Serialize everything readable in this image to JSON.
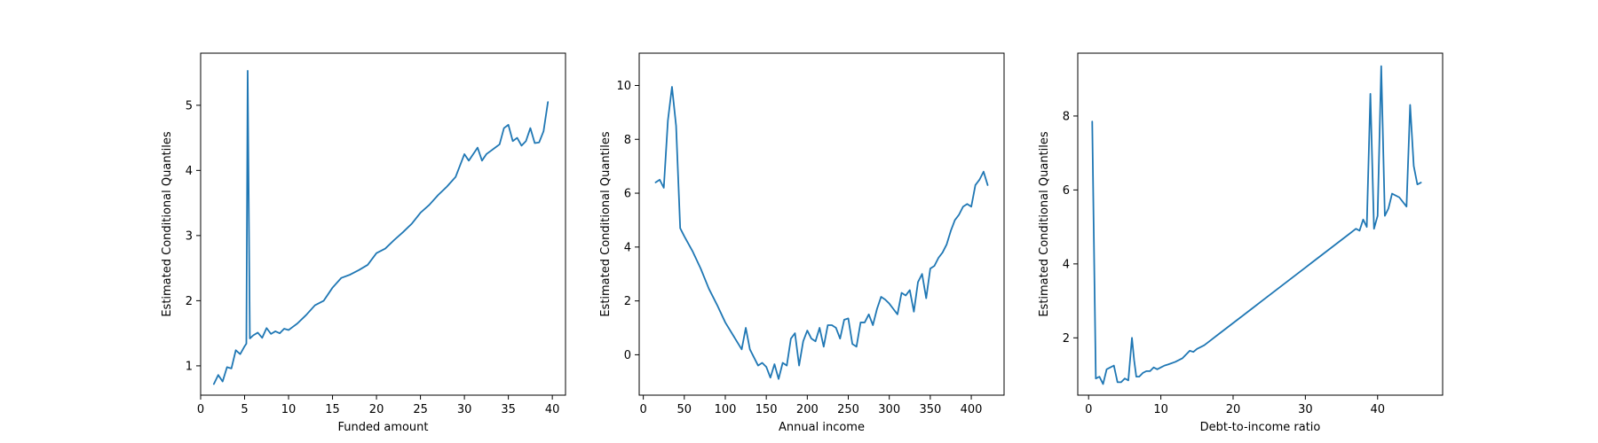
{
  "chart_data": [
    {
      "type": "line",
      "xlabel": "Funded amount",
      "ylabel": "Estimated Conditional Quantiles",
      "xlim": [
        0,
        41.5
      ],
      "ylim": [
        0.55,
        5.8
      ],
      "xticks": [
        0,
        5,
        10,
        15,
        20,
        25,
        30,
        35,
        40
      ],
      "yticks": [
        1,
        2,
        3,
        4,
        5
      ],
      "color": "#1f77b4",
      "x": [
        1.5,
        2.0,
        2.5,
        3.0,
        3.5,
        4.0,
        4.5,
        5.0,
        5.2,
        5.35,
        5.6,
        6.0,
        6.5,
        7.0,
        7.5,
        8.0,
        8.5,
        9.0,
        9.5,
        10.0,
        10.5,
        11,
        12,
        13,
        14,
        15,
        16,
        17,
        18,
        19,
        20,
        21,
        22,
        23,
        24,
        25,
        26,
        27,
        28,
        29,
        30,
        30.5,
        31,
        31.5,
        32,
        32.5,
        33,
        33.5,
        34,
        34.5,
        35,
        35.5,
        36,
        36.5,
        37,
        37.5,
        38,
        38.5,
        39,
        39.5
      ],
      "y": [
        0.72,
        0.86,
        0.76,
        0.98,
        0.96,
        1.24,
        1.18,
        1.3,
        1.34,
        5.53,
        1.42,
        1.47,
        1.51,
        1.43,
        1.58,
        1.49,
        1.53,
        1.5,
        1.57,
        1.55,
        1.6,
        1.65,
        1.78,
        1.93,
        2.0,
        2.2,
        2.35,
        2.4,
        2.47,
        2.55,
        2.73,
        2.8,
        2.93,
        3.05,
        3.18,
        3.35,
        3.47,
        3.62,
        3.75,
        3.9,
        4.25,
        4.15,
        4.25,
        4.35,
        4.15,
        4.25,
        4.3,
        4.35,
        4.4,
        4.65,
        4.7,
        4.45,
        4.5,
        4.38,
        4.45,
        4.65,
        4.42,
        4.43,
        4.6,
        5.05
      ]
    },
    {
      "type": "line",
      "xlabel": "Annual income",
      "ylabel": "Estimated Conditional Quantiles",
      "xlim": [
        -5,
        440
      ],
      "ylim": [
        -1.5,
        11.2
      ],
      "xticks": [
        0,
        50,
        100,
        150,
        200,
        250,
        300,
        350,
        400
      ],
      "yticks": [
        0,
        2,
        4,
        6,
        8,
        10
      ],
      "color": "#1f77b4",
      "x": [
        15,
        20,
        25,
        30,
        35,
        40,
        45,
        50,
        60,
        70,
        80,
        90,
        100,
        110,
        120,
        125,
        130,
        140,
        145,
        150,
        155,
        160,
        165,
        170,
        175,
        180,
        185,
        190,
        195,
        200,
        205,
        210,
        215,
        220,
        225,
        230,
        235,
        240,
        245,
        250,
        255,
        260,
        265,
        270,
        275,
        280,
        285,
        290,
        295,
        300,
        305,
        310,
        315,
        320,
        325,
        330,
        335,
        340,
        345,
        350,
        355,
        360,
        365,
        370,
        375,
        380,
        385,
        390,
        395,
        400,
        405,
        410,
        415,
        420
      ],
      "y": [
        6.4,
        6.5,
        6.2,
        8.7,
        9.95,
        8.5,
        4.7,
        4.4,
        3.85,
        3.2,
        2.45,
        1.85,
        1.2,
        0.7,
        0.2,
        1.0,
        0.2,
        -0.4,
        -0.3,
        -0.45,
        -0.85,
        -0.35,
        -0.9,
        -0.3,
        -0.4,
        0.6,
        0.8,
        -0.4,
        0.5,
        0.9,
        0.6,
        0.5,
        1.0,
        0.3,
        1.1,
        1.1,
        1.0,
        0.6,
        1.3,
        1.35,
        0.4,
        0.3,
        1.2,
        1.2,
        1.5,
        1.1,
        1.7,
        2.15,
        2.05,
        1.9,
        1.7,
        1.5,
        2.3,
        2.2,
        2.4,
        1.6,
        2.7,
        3.0,
        2.1,
        3.2,
        3.3,
        3.6,
        3.8,
        4.1,
        4.6,
        5.0,
        5.2,
        5.5,
        5.6,
        5.5,
        6.3,
        6.5,
        6.8,
        6.3
      ]
    },
    {
      "type": "line",
      "xlabel": "Debt-to-income ratio",
      "ylabel": "Estimated Conditional Quantiles",
      "xlim": [
        -1.5,
        49
      ],
      "ylim": [
        0.45,
        9.7
      ],
      "xticks": [
        0,
        10,
        20,
        30,
        40
      ],
      "yticks": [
        2,
        4,
        6,
        8
      ],
      "color": "#1f77b4",
      "x": [
        0.5,
        1.0,
        1.5,
        2.0,
        2.5,
        3.0,
        3.5,
        4.0,
        4.5,
        5.0,
        5.5,
        6.0,
        6.3,
        6.6,
        7.0,
        7.5,
        8,
        8.5,
        9,
        9.5,
        10,
        10.5,
        11,
        12,
        13,
        14,
        14.5,
        15,
        16,
        17,
        18,
        19,
        20,
        21,
        22,
        23,
        24,
        25,
        26,
        27,
        28,
        29,
        30,
        31,
        32,
        33,
        34,
        35,
        36,
        37,
        37.5,
        38,
        38.5,
        39,
        39.5,
        40,
        40.5,
        41,
        41.5,
        42,
        43,
        44,
        44.5,
        45,
        45.5,
        46
      ],
      "y": [
        7.85,
        0.9,
        0.95,
        0.75,
        1.15,
        1.2,
        1.25,
        0.8,
        0.8,
        0.9,
        0.85,
        2.0,
        1.4,
        0.95,
        0.95,
        1.05,
        1.1,
        1.1,
        1.2,
        1.15,
        1.2,
        1.25,
        1.28,
        1.35,
        1.45,
        1.65,
        1.62,
        1.7,
        1.8,
        1.95,
        2.1,
        2.25,
        2.4,
        2.55,
        2.7,
        2.85,
        3.0,
        3.15,
        3.3,
        3.45,
        3.6,
        3.75,
        3.9,
        4.05,
        4.2,
        4.35,
        4.5,
        4.65,
        4.8,
        4.95,
        4.9,
        5.2,
        5.0,
        8.6,
        4.95,
        5.3,
        9.35,
        5.3,
        5.5,
        5.9,
        5.8,
        5.55,
        8.3,
        6.65,
        6.15,
        6.2
      ]
    }
  ]
}
